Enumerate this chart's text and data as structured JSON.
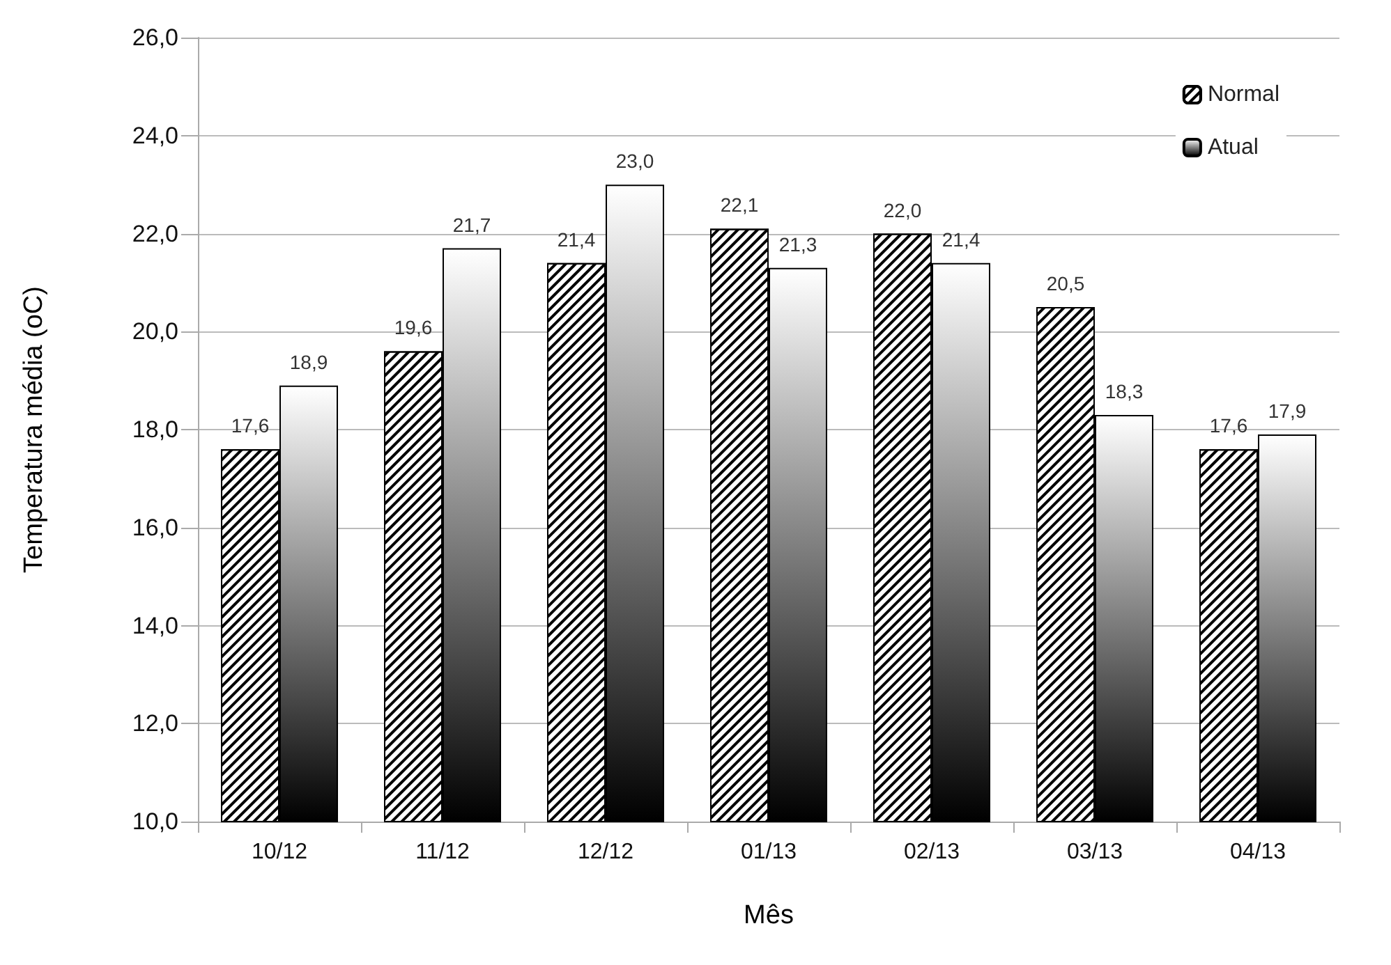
{
  "chart_data": {
    "type": "bar",
    "xlabel": "Mês",
    "ylabel": "Temperatura média (oC)",
    "categories": [
      "10/12",
      "11/12",
      "12/12",
      "01/13",
      "02/13",
      "03/13",
      "04/13"
    ],
    "series": [
      {
        "name": "Normal",
        "color": "#ffffff",
        "values": [
          17.6,
          19.6,
          21.4,
          22.1,
          22.0,
          20.5,
          17.6
        ],
        "value_labels": [
          "17,6",
          "19,6",
          "21,4",
          "22,1",
          "22,0",
          "20,5",
          "17,6"
        ]
      },
      {
        "name": "Atual",
        "color": "#000000",
        "values": [
          18.9,
          21.7,
          23.0,
          21.3,
          21.4,
          18.3,
          17.9
        ],
        "value_labels": [
          "18,9",
          "21,7",
          "23,0",
          "21,3",
          "21,4",
          "18,3",
          "17,9"
        ]
      }
    ],
    "ylim": [
      10,
      26
    ],
    "yticks": [
      {
        "value": 10,
        "label": "10,0"
      },
      {
        "value": 12,
        "label": "12,0"
      },
      {
        "value": 14,
        "label": "14,0"
      },
      {
        "value": 16,
        "label": "16,0"
      },
      {
        "value": 18,
        "label": "18,0"
      },
      {
        "value": 20,
        "label": "20,0"
      },
      {
        "value": 22,
        "label": "22,0"
      },
      {
        "value": 24,
        "label": "24,0"
      },
      {
        "value": 26,
        "label": "26,0"
      }
    ],
    "grid": "y",
    "legend": "top right"
  }
}
